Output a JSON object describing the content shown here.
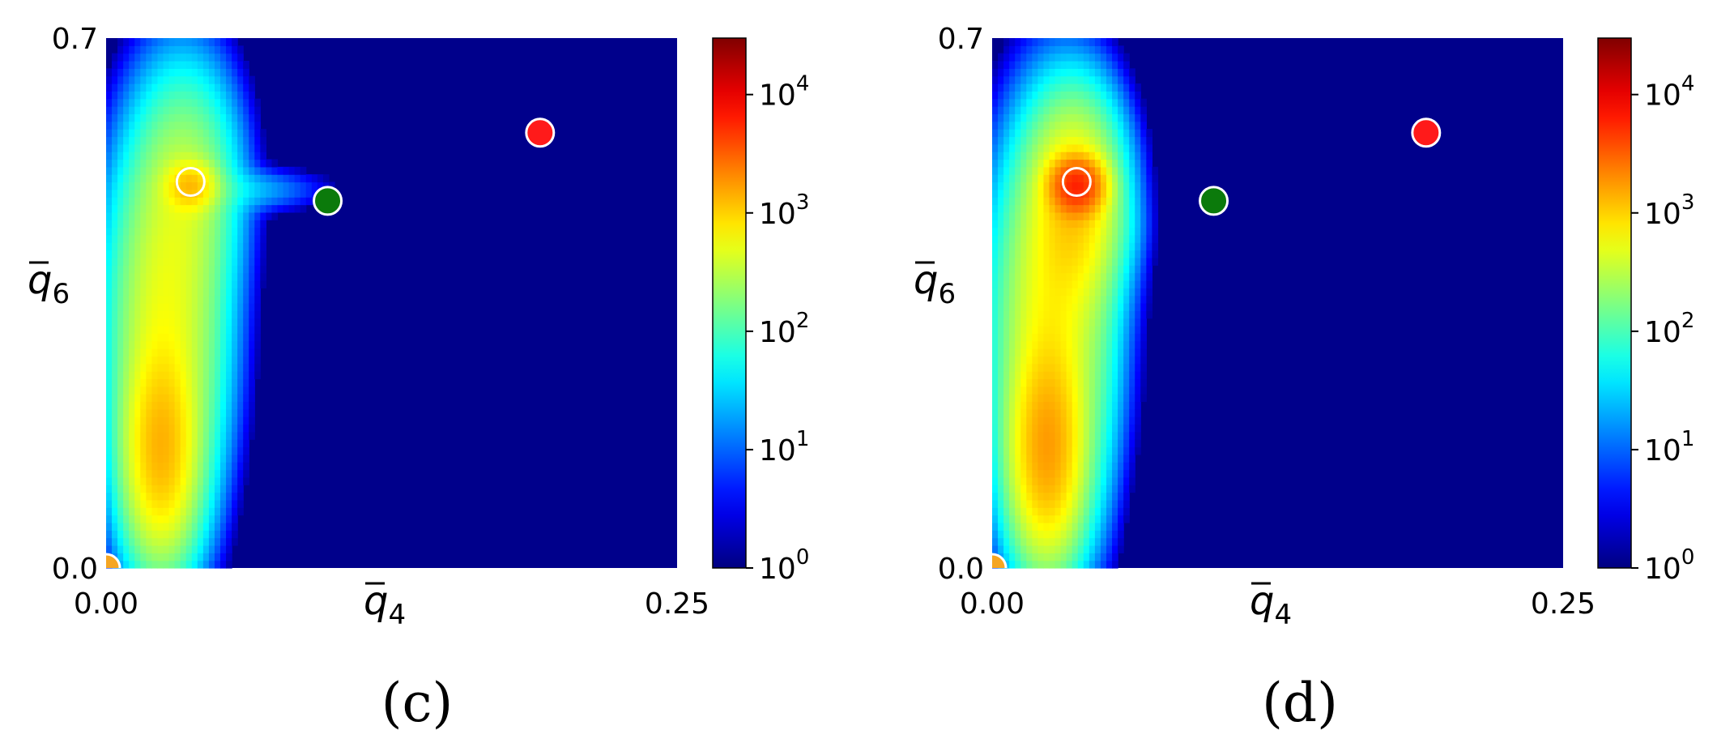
{
  "chart_data": [
    {
      "type": "heatmap",
      "panel_label": "(c)",
      "x_axis_label_base": "q",
      "x_axis_label_sub": "4",
      "y_axis_label_base": "q",
      "y_axis_label_sub": "6",
      "xlim": [
        0.0,
        0.25
      ],
      "ylim": [
        0.0,
        0.7
      ],
      "x_tick_labels": [
        "0.00",
        "0.25"
      ],
      "y_tick_labels": [
        "0.0",
        "0.7"
      ],
      "colorbar": {
        "scale": "log",
        "range": [
          1,
          30000
        ],
        "ticks": [
          {
            "base": "10",
            "exp": "0",
            "value": 1
          },
          {
            "base": "10",
            "exp": "1",
            "value": 10
          },
          {
            "base": "10",
            "exp": "2",
            "value": 100
          },
          {
            "base": "10",
            "exp": "3",
            "value": 1000
          },
          {
            "base": "10",
            "exp": "4",
            "value": 10000
          }
        ]
      },
      "colormap": "jet",
      "background_color": "#00008b",
      "density_blobs": [
        {
          "x": 0.024,
          "y": 0.155,
          "sx": 0.0085,
          "sy": 0.075,
          "amp": 1200
        },
        {
          "x": 0.026,
          "y": 0.33,
          "sx": 0.012,
          "sy": 0.12,
          "amp": 500
        },
        {
          "x": 0.035,
          "y": 0.5,
          "sx": 0.011,
          "sy": 0.08,
          "amp": 260
        },
        {
          "x": 0.037,
          "y": 0.505,
          "sx": 0.006,
          "sy": 0.018,
          "amp": 900
        },
        {
          "x": 0.052,
          "y": 0.5,
          "sx": 0.02,
          "sy": 0.015,
          "amp": 30
        },
        {
          "x": 0.044,
          "y": 0.28,
          "sx": 0.006,
          "sy": 0.12,
          "amp": 20
        }
      ],
      "reference_points": [
        {
          "x": 0.0,
          "y": 0.0,
          "color": "#f5a623"
        },
        {
          "x": 0.037,
          "y": 0.51,
          "color": "none"
        },
        {
          "x": 0.097,
          "y": 0.485,
          "color": "#0b7a0b"
        },
        {
          "x": 0.19,
          "y": 0.575,
          "color": "#ff1a1a"
        }
      ]
    },
    {
      "type": "heatmap",
      "panel_label": "(d)",
      "x_axis_label_base": "q",
      "x_axis_label_sub": "4",
      "y_axis_label_base": "q",
      "y_axis_label_sub": "6",
      "xlim": [
        0.0,
        0.25
      ],
      "ylim": [
        0.0,
        0.7
      ],
      "x_tick_labels": [
        "0.00",
        "0.25"
      ],
      "y_tick_labels": [
        "0.0",
        "0.7"
      ],
      "colorbar": {
        "scale": "log",
        "range": [
          1,
          30000
        ],
        "ticks": [
          {
            "base": "10",
            "exp": "0",
            "value": 1
          },
          {
            "base": "10",
            "exp": "1",
            "value": 10
          },
          {
            "base": "10",
            "exp": "2",
            "value": 100
          },
          {
            "base": "10",
            "exp": "3",
            "value": 1000
          },
          {
            "base": "10",
            "exp": "4",
            "value": 10000
          }
        ]
      },
      "colormap": "jet",
      "background_color": "#00008b",
      "density_blobs": [
        {
          "x": 0.024,
          "y": 0.155,
          "sx": 0.0085,
          "sy": 0.075,
          "amp": 1500
        },
        {
          "x": 0.026,
          "y": 0.33,
          "sx": 0.012,
          "sy": 0.12,
          "amp": 600
        },
        {
          "x": 0.036,
          "y": 0.48,
          "sx": 0.01,
          "sy": 0.07,
          "amp": 900
        },
        {
          "x": 0.037,
          "y": 0.505,
          "sx": 0.006,
          "sy": 0.02,
          "amp": 5000
        },
        {
          "x": 0.05,
          "y": 0.45,
          "sx": 0.008,
          "sy": 0.03,
          "amp": 20
        },
        {
          "x": 0.047,
          "y": 0.28,
          "sx": 0.005,
          "sy": 0.13,
          "amp": 20
        }
      ],
      "reference_points": [
        {
          "x": 0.0,
          "y": 0.0,
          "color": "#f5a623"
        },
        {
          "x": 0.037,
          "y": 0.51,
          "color": "none"
        },
        {
          "x": 0.097,
          "y": 0.485,
          "color": "#0b7a0b"
        },
        {
          "x": 0.19,
          "y": 0.575,
          "color": "#ff1a1a"
        }
      ]
    }
  ]
}
